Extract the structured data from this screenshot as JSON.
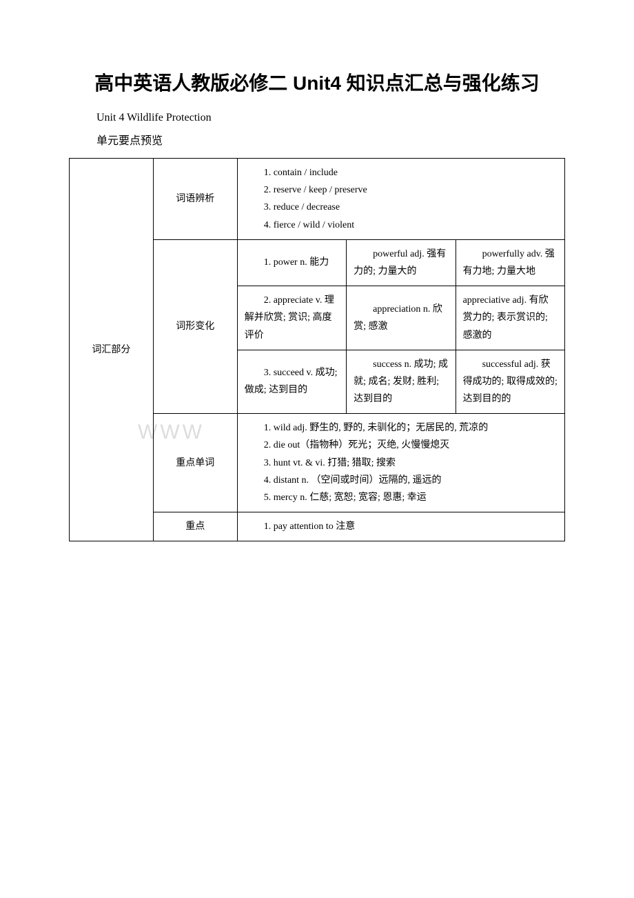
{
  "title": "高中英语人教版必修二 Unit4 知识点汇总与强化练习",
  "subtitle": "Unit 4 Wildlife Protection",
  "section_label": "单元要点预览",
  "watermark": "WWW",
  "col_labels": {
    "vocab_section": "词汇部分",
    "word_analysis": "词语辨析",
    "word_form": "词形变化",
    "key_words": "重点单词",
    "key_phrases": "重点"
  },
  "analysis": {
    "line1": "1. contain / include",
    "line2": "2. reserve / keep / preserve",
    "line3": "3. reduce / decrease",
    "line4": "4. fierce / wild / violent"
  },
  "forms": {
    "row1": {
      "c1": "1. power n. 能力",
      "c2": "powerful adj. 强有力的; 力量大的",
      "c3": "powerfully adv. 强有力地; 力量大地"
    },
    "row2": {
      "c1": "2. appreciate v. 理解并欣赏; 赏识; 高度评价",
      "c2": "appreciation n. 欣赏; 感激",
      "c3": "appreciative adj. 有欣赏力的; 表示赏识的; 感激的"
    },
    "row3": {
      "c1": "3. succeed v.  成功; 做成; 达到目的",
      "c2": "success n.  成功; 成就; 成名; 发财; 胜利; 达到目的",
      "c3": "successful adj.  获得成功的; 取得成效的; 达到目的的"
    }
  },
  "keywords": {
    "line1": "1. wild adj. 野生的, 野的, 未驯化的；无居民的, 荒凉的",
    "line2": "2. die out（指物种）死光；灭绝, 火慢慢熄灭",
    "line3": "3. hunt vt. & vi. 打猎; 猎取; 搜索",
    "line4": "4. distant n. （空间或时间）远隔的, 遥远的",
    "line5": "5. mercy n. 仁慈; 宽恕; 宽容; 恩惠; 幸运"
  },
  "phrases": {
    "line1": "1. pay attention to 注意"
  }
}
